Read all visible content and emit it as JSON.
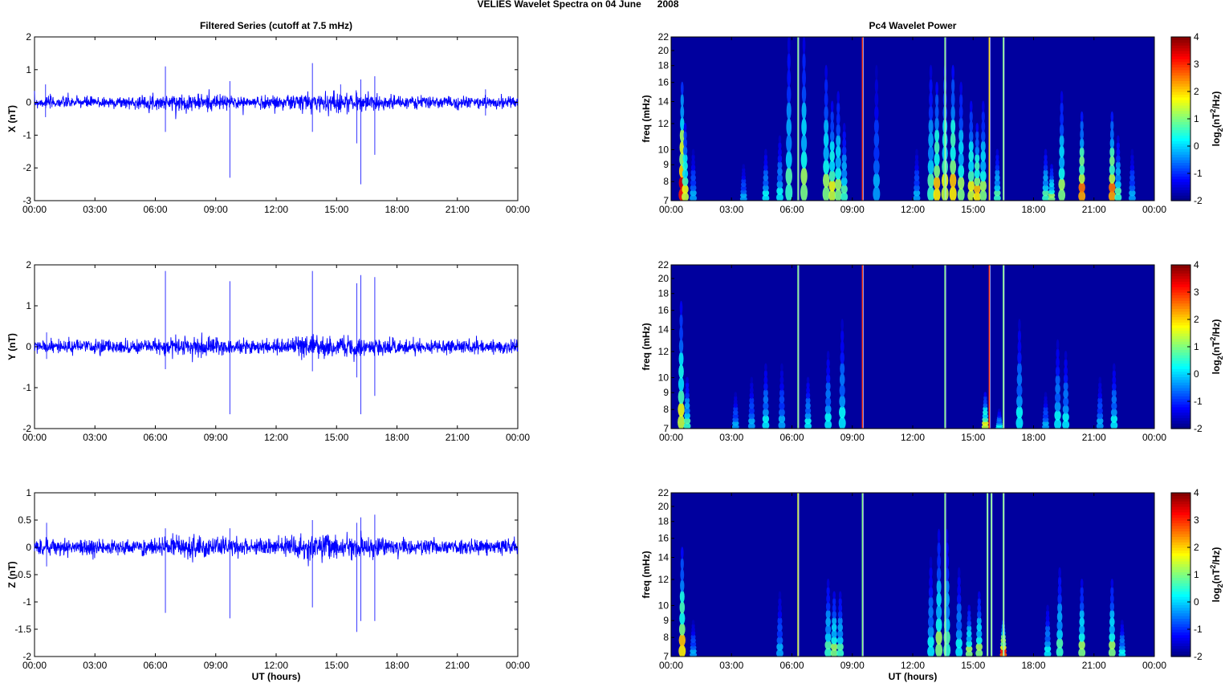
{
  "chart_data": {
    "title": "VELIES Wavelet Spectra on 04 June      2008",
    "xlabel": "UT (hours)",
    "xticks": [
      "00:00",
      "03:00",
      "06:00",
      "09:00",
      "12:00",
      "15:00",
      "18:00",
      "21:00",
      "00:00"
    ],
    "xlim": [
      0,
      24
    ],
    "left_title": "Filtered Series (cutoff at 7.5 mHz)",
    "right_title": "Pc4 Wavelet Power",
    "freq_label": "freq (mHz)",
    "freq_ticks": [
      7,
      8,
      9,
      10,
      12,
      14,
      16,
      18,
      20,
      22
    ],
    "freq_lim": [
      7,
      22
    ],
    "colorbar": {
      "label": "log2(nT2/Hz)",
      "ticks": [
        4,
        3,
        2,
        1,
        0,
        -1,
        -2
      ],
      "lim": [
        -2,
        4
      ]
    },
    "series": [
      {
        "name": "X",
        "ylabel": "X (nT)",
        "type": "line",
        "color": "#0000ff",
        "ylim": [
          -3,
          2
        ],
        "yticks": [
          "2",
          "1",
          "0",
          "-1",
          "-2",
          "-3"
        ],
        "ytick_values": [
          2,
          1,
          0,
          -1,
          -2,
          -3
        ],
        "noise": 0.09,
        "spikes": [
          [
            0.55,
            0.55,
            -0.45
          ],
          [
            6.5,
            1.1,
            -0.9
          ],
          [
            9.7,
            0.65,
            -2.3
          ],
          [
            13.8,
            1.2,
            -0.9
          ],
          [
            15.2,
            0.55,
            -0.3
          ],
          [
            16.0,
            0.3,
            -1.25
          ],
          [
            16.2,
            0.7,
            -2.5
          ],
          [
            16.9,
            0.8,
            -1.6
          ],
          [
            22.4,
            0.4,
            -0.4
          ]
        ]
      },
      {
        "name": "Y",
        "ylabel": "Y (nT)",
        "type": "line",
        "color": "#0000ff",
        "ylim": [
          -2,
          2
        ],
        "yticks": [
          "2",
          "1",
          "0",
          "-1",
          "-2"
        ],
        "ytick_values": [
          2,
          1,
          0,
          -1,
          -2
        ],
        "noise": 0.08,
        "spikes": [
          [
            0.6,
            0.35,
            -0.3
          ],
          [
            6.5,
            1.85,
            -0.55
          ],
          [
            9.7,
            1.6,
            -1.65
          ],
          [
            13.8,
            1.85,
            -0.6
          ],
          [
            16.0,
            1.55,
            -0.75
          ],
          [
            16.2,
            1.75,
            -1.65
          ],
          [
            16.9,
            1.7,
            -1.2
          ]
        ]
      },
      {
        "name": "Z",
        "ylabel": "Z (nT)",
        "type": "line",
        "color": "#0000ff",
        "ylim": [
          -2,
          1
        ],
        "yticks": [
          "1",
          "0.5",
          "0",
          "-0.5",
          "-1",
          "-1.5",
          "-2"
        ],
        "ytick_values": [
          1,
          0.5,
          0,
          -0.5,
          -1,
          -1.5,
          -2
        ],
        "noise": 0.07,
        "spikes": [
          [
            0.6,
            0.45,
            -0.35
          ],
          [
            6.5,
            0.35,
            -1.2
          ],
          [
            9.7,
            0.35,
            -1.3
          ],
          [
            13.8,
            0.5,
            -1.1
          ],
          [
            16.0,
            0.45,
            -1.55
          ],
          [
            16.2,
            0.55,
            -1.35
          ],
          [
            16.9,
            0.6,
            -1.35
          ]
        ]
      }
    ],
    "spectra": [
      {
        "name": "X",
        "events": [
          [
            0.55,
            16,
            4
          ],
          [
            0.7,
            12,
            2
          ],
          [
            1.1,
            10,
            0
          ],
          [
            3.6,
            9,
            0
          ],
          [
            4.7,
            10,
            0.5
          ],
          [
            5.4,
            11,
            0.5
          ],
          [
            5.85,
            22,
            1
          ],
          [
            6.6,
            22,
            1.5
          ],
          [
            7.7,
            18,
            1.5
          ],
          [
            8.0,
            14,
            2
          ],
          [
            8.3,
            15,
            1.5
          ],
          [
            8.6,
            12,
            1
          ],
          [
            10.2,
            18,
            0
          ],
          [
            12.2,
            10,
            0
          ],
          [
            12.9,
            18,
            1
          ],
          [
            13.2,
            16,
            2.5
          ],
          [
            13.6,
            18,
            2
          ],
          [
            14.0,
            18,
            2.5
          ],
          [
            14.4,
            16,
            1.5
          ],
          [
            14.9,
            14,
            2
          ],
          [
            15.2,
            12,
            2.5
          ],
          [
            15.5,
            14,
            1.5
          ],
          [
            16.2,
            10,
            1
          ],
          [
            18.6,
            10,
            1
          ],
          [
            18.9,
            9,
            1.5
          ],
          [
            19.4,
            15,
            1.5
          ],
          [
            20.4,
            13,
            3
          ],
          [
            21.9,
            13,
            3
          ],
          [
            22.2,
            11,
            1
          ],
          [
            22.9,
            10,
            0
          ]
        ],
        "lines": [
          [
            6.3,
            1
          ],
          [
            9.5,
            3
          ],
          [
            13.6,
            1
          ],
          [
            15.8,
            2
          ],
          [
            16.5,
            1
          ]
        ]
      },
      {
        "name": "Y",
        "events": [
          [
            0.5,
            17,
            2
          ],
          [
            0.8,
            10,
            1
          ],
          [
            3.2,
            9,
            0
          ],
          [
            4.0,
            10,
            0
          ],
          [
            4.7,
            11,
            0.5
          ],
          [
            5.5,
            11,
            0
          ],
          [
            6.8,
            10,
            0.5
          ],
          [
            7.8,
            12,
            0.5
          ],
          [
            8.5,
            15,
            0.5
          ],
          [
            15.6,
            9,
            2
          ],
          [
            16.3,
            8,
            0.5
          ],
          [
            17.3,
            15,
            0.5
          ],
          [
            18.6,
            9,
            0
          ],
          [
            19.2,
            13,
            0.5
          ],
          [
            19.6,
            12,
            0.5
          ],
          [
            21.3,
            10,
            0
          ],
          [
            22.0,
            11,
            0.5
          ]
        ],
        "lines": [
          [
            6.3,
            1
          ],
          [
            9.5,
            3
          ],
          [
            13.6,
            1
          ],
          [
            15.8,
            3
          ],
          [
            16.5,
            1
          ]
        ]
      },
      {
        "name": "Z",
        "events": [
          [
            0.55,
            15,
            2.5
          ],
          [
            1.1,
            9,
            0
          ],
          [
            5.4,
            11,
            0
          ],
          [
            7.8,
            12,
            1
          ],
          [
            8.1,
            11,
            1.5
          ],
          [
            8.4,
            11,
            1
          ],
          [
            12.9,
            14,
            0.5
          ],
          [
            13.3,
            17,
            1.5
          ],
          [
            13.7,
            17,
            1
          ],
          [
            14.3,
            13,
            0.5
          ],
          [
            14.8,
            10,
            1.5
          ],
          [
            15.3,
            11,
            1.5
          ],
          [
            16.5,
            9,
            3.5
          ],
          [
            18.7,
            10,
            0.5
          ],
          [
            19.3,
            13,
            1
          ],
          [
            20.4,
            12,
            1.5
          ],
          [
            21.9,
            12,
            1.5
          ],
          [
            22.4,
            9,
            0.5
          ]
        ],
        "lines": [
          [
            6.3,
            1.5
          ],
          [
            9.5,
            1
          ],
          [
            13.6,
            1
          ],
          [
            15.7,
            1
          ],
          [
            15.9,
            1
          ],
          [
            16.5,
            1
          ]
        ]
      }
    ]
  }
}
